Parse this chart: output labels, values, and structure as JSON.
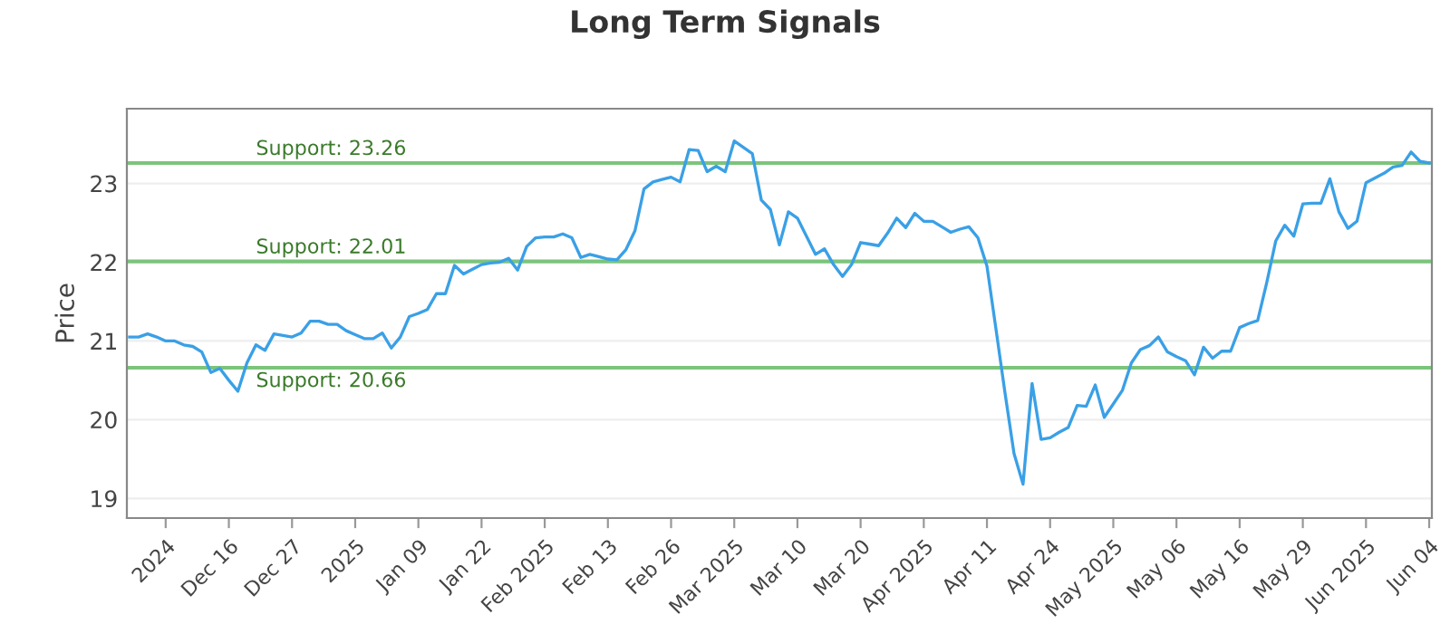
{
  "chart_data": {
    "type": "line",
    "title": "Long Term Signals",
    "ylabel": "Price",
    "categories": [
      null,
      null,
      null,
      null,
      "2024",
      null,
      null,
      null,
      null,
      null,
      null,
      "Dec 16",
      null,
      null,
      null,
      null,
      null,
      null,
      "Dec 27",
      null,
      null,
      null,
      null,
      null,
      null,
      "2025",
      null,
      null,
      null,
      null,
      null,
      null,
      "Jan 09",
      null,
      null,
      null,
      null,
      null,
      null,
      "Jan 22",
      null,
      null,
      null,
      null,
      null,
      null,
      "Feb 2025",
      null,
      null,
      null,
      null,
      null,
      null,
      "Feb 13",
      null,
      null,
      null,
      null,
      null,
      null,
      "Feb 26",
      null,
      null,
      null,
      null,
      null,
      null,
      "Mar 2025",
      null,
      null,
      null,
      null,
      null,
      null,
      "Mar 10",
      null,
      null,
      null,
      null,
      null,
      null,
      "Mar 20",
      null,
      null,
      null,
      null,
      null,
      null,
      "Apr 2025",
      null,
      null,
      null,
      null,
      null,
      null,
      "Apr 11",
      null,
      null,
      null,
      null,
      null,
      null,
      "Apr 24",
      null,
      null,
      null,
      null,
      null,
      null,
      "May 2025",
      null,
      null,
      null,
      null,
      null,
      null,
      "May 06",
      null,
      null,
      null,
      null,
      null,
      null,
      "May 16",
      null,
      null,
      null,
      null,
      null,
      null,
      "May 29",
      null,
      null,
      null,
      null,
      null,
      null,
      "Jun 2025",
      null,
      null,
      null,
      null,
      null,
      null,
      "Jun 04"
    ],
    "series": [
      {
        "color": "#3aa0e6",
        "values": [
          21.05,
          21.05,
          21.09,
          21.05,
          21.0,
          21.0,
          20.95,
          20.93,
          20.86,
          20.6,
          20.65,
          20.5,
          20.36,
          20.72,
          20.95,
          20.88,
          21.09,
          21.07,
          21.05,
          21.1,
          21.25,
          21.25,
          21.21,
          21.21,
          21.13,
          21.08,
          21.03,
          21.03,
          21.1,
          20.91,
          21.05,
          21.31,
          21.35,
          21.4,
          21.6,
          21.6,
          21.96,
          21.85,
          21.91,
          21.97,
          21.99,
          22.0,
          22.05,
          21.9,
          22.2,
          22.31,
          22.32,
          22.32,
          22.36,
          22.31,
          22.06,
          22.1,
          22.07,
          22.04,
          22.03,
          22.16,
          22.4,
          22.93,
          23.02,
          23.05,
          23.08,
          23.02,
          23.43,
          23.42,
          23.15,
          23.22,
          23.15,
          23.54,
          23.46,
          23.38,
          22.79,
          22.67,
          22.22,
          22.64,
          22.56,
          22.33,
          22.1,
          22.17,
          21.97,
          21.82,
          21.97,
          22.25,
          22.23,
          22.21,
          22.37,
          22.56,
          22.44,
          22.62,
          22.52,
          22.52,
          22.45,
          22.38,
          22.42,
          22.45,
          22.31,
          21.95,
          21.15,
          20.34,
          19.57,
          19.18,
          20.46,
          19.75,
          19.77,
          19.84,
          19.9,
          20.18,
          20.17,
          20.44,
          20.03,
          20.2,
          20.37,
          20.72,
          20.89,
          20.94,
          21.05,
          20.86,
          20.8,
          20.75,
          20.57,
          20.92,
          20.78,
          20.87,
          20.87,
          21.17,
          21.22,
          21.26,
          21.74,
          22.27,
          22.47,
          22.33,
          22.74,
          22.75,
          22.75,
          23.06,
          22.64,
          22.43,
          22.52,
          23.01,
          23.07,
          23.13,
          23.21,
          23.23,
          23.4,
          23.28,
          23.26
        ]
      }
    ],
    "ylim": [
      18.75,
      23.95
    ],
    "yticks": [
      19,
      20,
      21,
      22,
      23
    ],
    "grid": "y",
    "marker": "none",
    "line_style": "solid",
    "ref_lines": [
      {
        "axis": "y",
        "value": 23.26,
        "label": "Support: 23.26",
        "color": "#7cc47c"
      },
      {
        "axis": "y",
        "value": 22.01,
        "label": "Support: 22.01",
        "color": "#7cc47c"
      },
      {
        "axis": "y",
        "value": 20.66,
        "label": "Support: 20.66",
        "color": "#7cc47c"
      }
    ]
  }
}
